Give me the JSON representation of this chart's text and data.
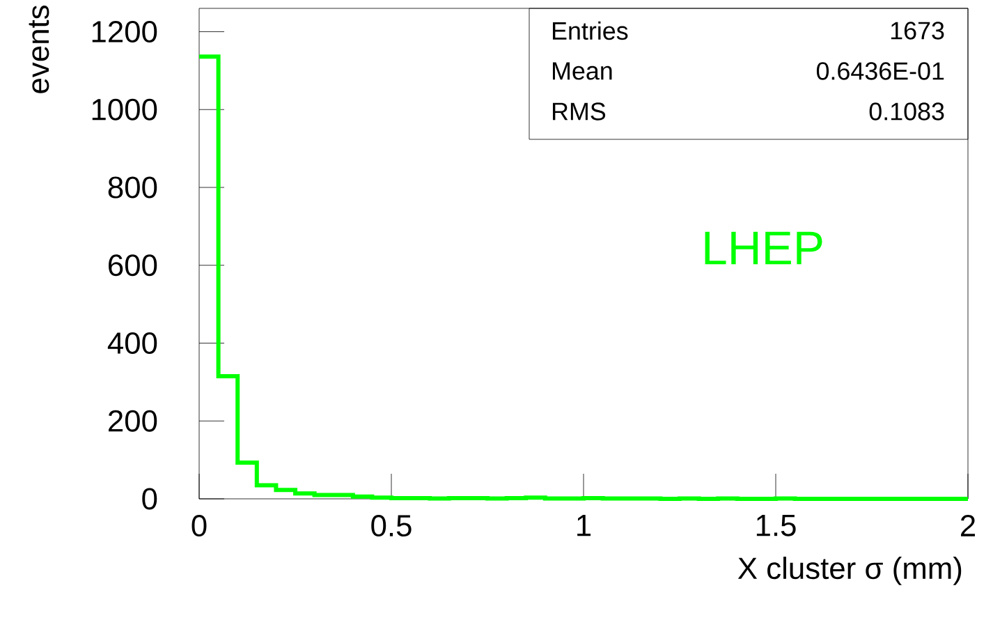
{
  "chart_data": {
    "type": "histogram",
    "xlabel": "X cluster σ (mm)",
    "ylabel": "events",
    "bins": [
      0,
      0.05,
      0.1,
      0.15,
      0.2,
      0.25,
      0.3,
      0.35,
      0.4,
      0.45,
      0.5,
      0.55,
      0.6,
      0.65,
      0.7,
      0.75,
      0.8,
      0.85,
      0.9,
      0.95,
      1,
      1.05,
      1.1,
      1.15,
      1.2,
      1.25,
      1.3,
      1.35,
      1.4,
      1.45,
      1.5,
      1.55,
      1.6,
      1.65,
      1.7,
      1.75,
      1.8,
      1.85,
      1.9,
      1.95,
      2
    ],
    "values": [
      1136,
      315,
      93,
      35,
      23,
      14,
      10,
      10,
      6,
      3,
      2,
      2,
      1,
      2,
      2,
      1,
      2,
      3,
      1,
      1,
      2,
      1,
      1,
      1,
      0,
      1,
      0,
      1,
      0,
      0,
      1,
      0,
      0,
      0,
      0,
      0,
      0,
      0,
      0,
      0
    ],
    "color": "#00ff00",
    "xlim": [
      0,
      2
    ],
    "xticks": [
      0,
      0.5,
      1,
      1.5,
      2
    ],
    "ylim": [
      0,
      1260
    ],
    "yticks": [
      0,
      200,
      400,
      600,
      800,
      1000,
      1200
    ],
    "grid": false,
    "annotations": [
      "Entries",
      "1673",
      "Mean",
      "0.6436E-01",
      "RMS",
      "0.1083",
      "LHEP"
    ]
  }
}
